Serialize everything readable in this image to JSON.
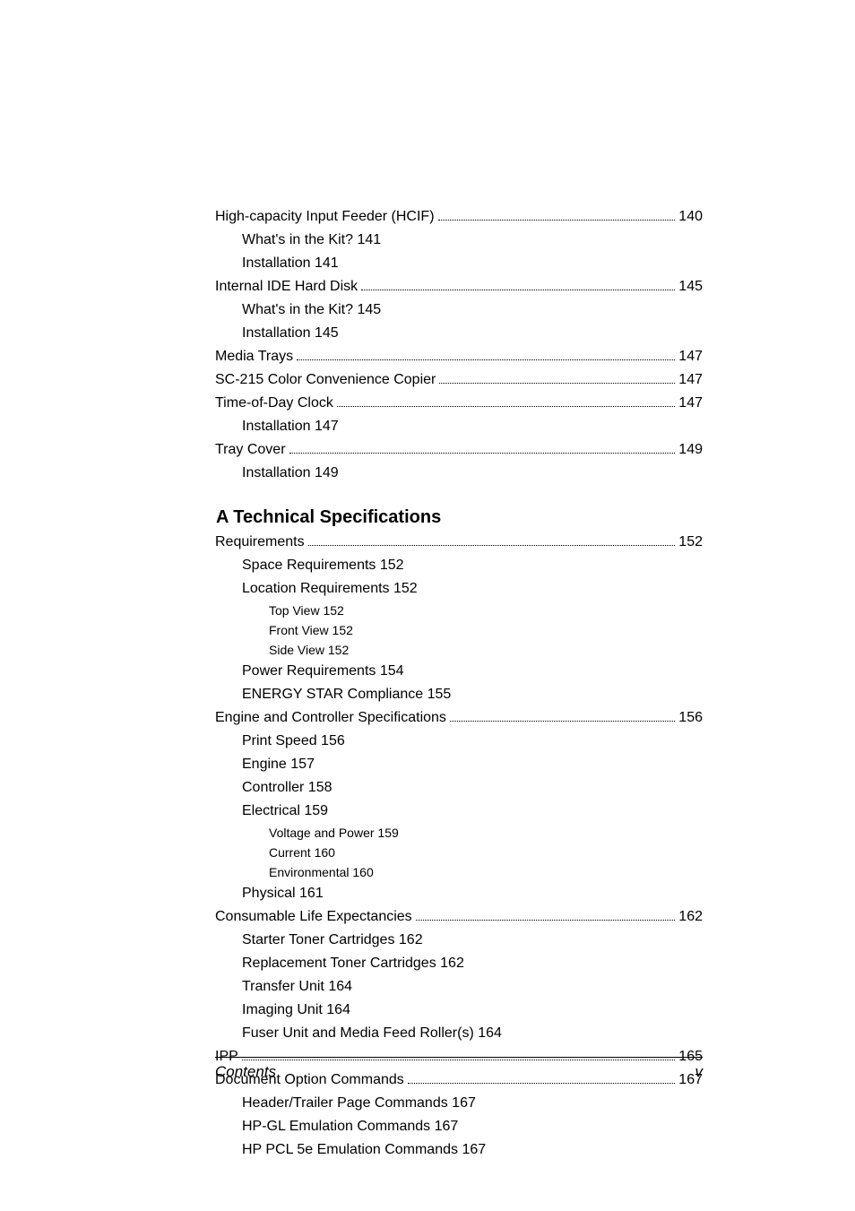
{
  "toc1": {
    "items": [
      {
        "type": "line",
        "text": "High-capacity Input Feeder (HCIF)",
        "page": "140",
        "indent": 0
      },
      {
        "type": "simple",
        "text": "What's in the Kit?    141",
        "indent": 1
      },
      {
        "type": "simple",
        "text": "Installation    141",
        "indent": 1
      },
      {
        "type": "line",
        "text": "Internal IDE Hard Disk",
        "page": "145",
        "indent": 0
      },
      {
        "type": "simple",
        "text": "What's in the Kit?    145",
        "indent": 1
      },
      {
        "type": "simple",
        "text": "Installation    145",
        "indent": 1
      },
      {
        "type": "line",
        "text": "Media Trays",
        "page": "147",
        "indent": 0
      },
      {
        "type": "line",
        "text": "SC-215 Color Convenience Copier",
        "page": "147",
        "indent": 0
      },
      {
        "type": "line",
        "text": "Time-of-Day Clock",
        "page": "147",
        "indent": 0
      },
      {
        "type": "simple",
        "text": "Installation    147",
        "indent": 1
      },
      {
        "type": "line",
        "text": "Tray Cover",
        "page": "149",
        "indent": 0
      },
      {
        "type": "simple",
        "text": "Installation    149",
        "indent": 1
      }
    ]
  },
  "sectionA": {
    "letter": "A",
    "title": "Technical Specifications",
    "items": [
      {
        "type": "line",
        "text": "Requirements",
        "page": "152",
        "indent": 0
      },
      {
        "type": "simple",
        "text": "Space Requirements    152",
        "indent": 1
      },
      {
        "type": "simple",
        "text": "Location Requirements    152",
        "indent": 1
      },
      {
        "type": "small",
        "text": "Top View 152",
        "indent": 2
      },
      {
        "type": "small",
        "text": "Front View 152",
        "indent": 2
      },
      {
        "type": "small",
        "text": "Side View 152",
        "indent": 2
      },
      {
        "type": "simple",
        "text": "Power Requirements    154",
        "indent": 1
      },
      {
        "type": "simple",
        "text": "ENERGY STAR Compliance    155",
        "indent": 1
      },
      {
        "type": "line",
        "text": "Engine and Controller Specifications",
        "page": "156",
        "indent": 0
      },
      {
        "type": "simple",
        "text": "Print Speed    156",
        "indent": 1
      },
      {
        "type": "simple",
        "text": "Engine    157",
        "indent": 1
      },
      {
        "type": "simple",
        "text": "Controller    158",
        "indent": 1
      },
      {
        "type": "simple",
        "text": "Electrical    159",
        "indent": 1
      },
      {
        "type": "small",
        "text": "Voltage and Power 159",
        "indent": 2
      },
      {
        "type": "small",
        "text": "Current  160",
        "indent": 2
      },
      {
        "type": "small",
        "text": "Environmental  160",
        "indent": 2
      },
      {
        "type": "simple",
        "text": "Physical    161",
        "indent": 1
      },
      {
        "type": "line",
        "text": "Consumable Life Expectancies",
        "page": "162",
        "indent": 0
      },
      {
        "type": "simple",
        "text": "Starter Toner Cartridges    162",
        "indent": 1
      },
      {
        "type": "simple",
        "text": "Replacement Toner Cartridges    162",
        "indent": 1
      },
      {
        "type": "simple",
        "text": "Transfer Unit    164",
        "indent": 1
      },
      {
        "type": "simple",
        "text": "Imaging Unit    164",
        "indent": 1
      },
      {
        "type": "simple",
        "text": "Fuser Unit and Media Feed Roller(s)    164",
        "indent": 1
      },
      {
        "type": "line",
        "text": "IPP",
        "page": "165",
        "indent": 0
      },
      {
        "type": "line",
        "text": "Document Option Commands",
        "page": "167",
        "indent": 0
      },
      {
        "type": "simple",
        "text": "Header/Trailer Page Commands    167",
        "indent": 1
      },
      {
        "type": "simple",
        "text": "HP-GL Emulation Commands    167",
        "indent": 1
      },
      {
        "type": "simple",
        "text": "HP PCL 5e Emulation Commands    167",
        "indent": 1
      }
    ]
  },
  "footer": {
    "left": "Contents",
    "right": "v"
  }
}
